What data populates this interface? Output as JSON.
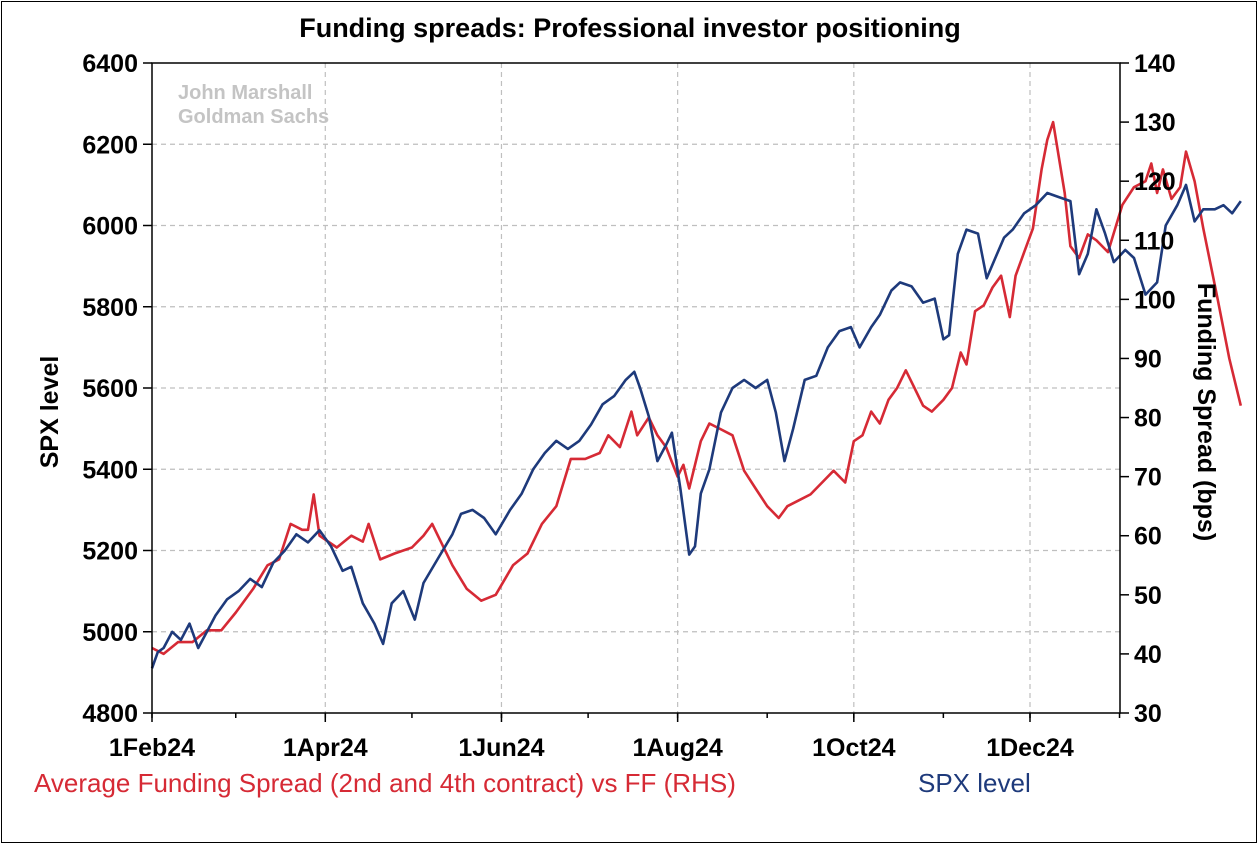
{
  "chart_data": {
    "type": "line",
    "title": "Funding spreads: Professional investor positioning",
    "watermark": [
      "John Marshall",
      "Goldman Sachs"
    ],
    "ylabel": "SPX level",
    "y2label": "Funding Spread (bps)",
    "ylim": [
      4800,
      6400
    ],
    "y2lim": [
      30,
      140
    ],
    "yticks": [
      "6400",
      "6200",
      "6000",
      "5800",
      "5600",
      "5400",
      "5200",
      "5000",
      "4800"
    ],
    "y2ticks": [
      "140",
      "130",
      "120",
      "110",
      "100",
      "90",
      "80",
      "70",
      "60",
      "50",
      "40",
      "30"
    ],
    "xticks": [
      "1Feb24",
      "1Apr24",
      "1Jun24",
      "1Aug24",
      "1Oct24",
      "1Dec24"
    ],
    "grid": true,
    "legend_position": "bottom",
    "colors": {
      "funding": "#d62a35",
      "spx": "#1e3a7b"
    },
    "series": [
      {
        "name": "Average Funding Spread (2nd and 4th contract) vs FF (RHS)",
        "axis": "right",
        "points": [
          [
            "2024-02-01",
            41
          ],
          [
            "2024-02-05",
            40
          ],
          [
            "2024-02-10",
            42
          ],
          [
            "2024-02-15",
            42
          ],
          [
            "2024-02-20",
            44
          ],
          [
            "2024-02-25",
            44
          ],
          [
            "2024-03-01",
            47
          ],
          [
            "2024-03-07",
            51
          ],
          [
            "2024-03-12",
            55
          ],
          [
            "2024-03-16",
            56
          ],
          [
            "2024-03-20",
            62
          ],
          [
            "2024-03-24",
            61
          ],
          [
            "2024-03-26",
            61
          ],
          [
            "2024-03-28",
            67
          ],
          [
            "2024-03-30",
            60
          ],
          [
            "2024-04-05",
            58
          ],
          [
            "2024-04-10",
            60
          ],
          [
            "2024-04-14",
            59
          ],
          [
            "2024-04-16",
            62
          ],
          [
            "2024-04-20",
            56
          ],
          [
            "2024-04-25",
            57
          ],
          [
            "2024-05-01",
            58
          ],
          [
            "2024-05-05",
            60
          ],
          [
            "2024-05-08",
            62
          ],
          [
            "2024-05-10",
            60
          ],
          [
            "2024-05-15",
            55
          ],
          [
            "2024-05-20",
            51
          ],
          [
            "2024-05-25",
            49
          ],
          [
            "2024-05-30",
            50
          ],
          [
            "2024-06-05",
            55
          ],
          [
            "2024-06-10",
            57
          ],
          [
            "2024-06-15",
            62
          ],
          [
            "2024-06-20",
            65
          ],
          [
            "2024-06-25",
            73
          ],
          [
            "2024-06-30",
            73
          ],
          [
            "2024-07-05",
            74
          ],
          [
            "2024-07-08",
            77
          ],
          [
            "2024-07-12",
            75
          ],
          [
            "2024-07-16",
            81
          ],
          [
            "2024-07-18",
            77
          ],
          [
            "2024-07-22",
            80
          ],
          [
            "2024-07-25",
            77
          ],
          [
            "2024-07-28",
            75
          ],
          [
            "2024-08-01",
            70
          ],
          [
            "2024-08-03",
            72
          ],
          [
            "2024-08-05",
            68
          ],
          [
            "2024-08-09",
            76
          ],
          [
            "2024-08-12",
            79
          ],
          [
            "2024-08-16",
            78
          ],
          [
            "2024-08-20",
            77
          ],
          [
            "2024-08-24",
            71
          ],
          [
            "2024-08-28",
            68
          ],
          [
            "2024-09-01",
            65
          ],
          [
            "2024-09-05",
            63
          ],
          [
            "2024-09-08",
            65
          ],
          [
            "2024-09-12",
            66
          ],
          [
            "2024-09-16",
            67
          ],
          [
            "2024-09-20",
            69
          ],
          [
            "2024-09-24",
            71
          ],
          [
            "2024-09-28",
            69
          ],
          [
            "2024-10-01",
            76
          ],
          [
            "2024-10-04",
            77
          ],
          [
            "2024-10-07",
            81
          ],
          [
            "2024-10-10",
            79
          ],
          [
            "2024-10-13",
            83
          ],
          [
            "2024-10-16",
            85
          ],
          [
            "2024-10-19",
            88
          ],
          [
            "2024-10-22",
            85
          ],
          [
            "2024-10-25",
            82
          ],
          [
            "2024-10-28",
            81
          ],
          [
            "2024-11-01",
            83
          ],
          [
            "2024-11-04",
            85
          ],
          [
            "2024-11-07",
            91
          ],
          [
            "2024-11-09",
            89
          ],
          [
            "2024-11-12",
            98
          ],
          [
            "2024-11-15",
            99
          ],
          [
            "2024-11-18",
            102
          ],
          [
            "2024-11-21",
            104
          ],
          [
            "2024-11-24",
            97
          ],
          [
            "2024-11-26",
            104
          ],
          [
            "2024-11-29",
            108
          ],
          [
            "2024-12-02",
            112
          ],
          [
            "2024-12-05",
            122
          ],
          [
            "2024-12-07",
            127
          ],
          [
            "2024-12-09",
            130
          ],
          [
            "2024-12-11",
            124
          ],
          [
            "2024-12-13",
            118
          ],
          [
            "2024-12-15",
            109
          ],
          [
            "2024-12-18",
            107
          ],
          [
            "2024-12-21",
            111
          ],
          [
            "2024-12-24",
            110
          ],
          [
            "2024-12-28",
            108
          ],
          [
            "2025-01-02",
            116
          ],
          [
            "2025-01-06",
            119
          ],
          [
            "2025-01-10",
            120
          ],
          [
            "2025-01-12",
            123
          ],
          [
            "2025-01-14",
            118
          ],
          [
            "2025-01-16",
            122
          ],
          [
            "2025-01-19",
            117
          ],
          [
            "2025-01-22",
            119
          ],
          [
            "2025-01-24",
            125
          ],
          [
            "2025-01-27",
            120
          ],
          [
            "2025-01-30",
            112
          ],
          [
            "2025-02-04",
            100
          ],
          [
            "2025-02-08",
            90
          ],
          [
            "2025-02-12",
            82
          ]
        ]
      },
      {
        "name": "SPX level",
        "axis": "left",
        "points": [
          [
            "2024-02-01",
            4910
          ],
          [
            "2024-02-03",
            4950
          ],
          [
            "2024-02-05",
            4960
          ],
          [
            "2024-02-08",
            5000
          ],
          [
            "2024-02-11",
            4980
          ],
          [
            "2024-02-14",
            5020
          ],
          [
            "2024-02-17",
            4960
          ],
          [
            "2024-02-20",
            5000
          ],
          [
            "2024-02-23",
            5040
          ],
          [
            "2024-02-27",
            5080
          ],
          [
            "2024-03-02",
            5100
          ],
          [
            "2024-03-06",
            5130
          ],
          [
            "2024-03-10",
            5110
          ],
          [
            "2024-03-14",
            5170
          ],
          [
            "2024-03-18",
            5200
          ],
          [
            "2024-03-22",
            5240
          ],
          [
            "2024-03-26",
            5220
          ],
          [
            "2024-03-30",
            5250
          ],
          [
            "2024-04-03",
            5210
          ],
          [
            "2024-04-07",
            5150
          ],
          [
            "2024-04-10",
            5160
          ],
          [
            "2024-04-14",
            5070
          ],
          [
            "2024-04-18",
            5020
          ],
          [
            "2024-04-21",
            4970
          ],
          [
            "2024-04-24",
            5070
          ],
          [
            "2024-04-28",
            5100
          ],
          [
            "2024-05-02",
            5030
          ],
          [
            "2024-05-05",
            5120
          ],
          [
            "2024-05-10",
            5180
          ],
          [
            "2024-05-15",
            5240
          ],
          [
            "2024-05-18",
            5290
          ],
          [
            "2024-05-22",
            5300
          ],
          [
            "2024-05-26",
            5280
          ],
          [
            "2024-05-30",
            5240
          ],
          [
            "2024-06-04",
            5300
          ],
          [
            "2024-06-08",
            5340
          ],
          [
            "2024-06-12",
            5400
          ],
          [
            "2024-06-16",
            5440
          ],
          [
            "2024-06-20",
            5470
          ],
          [
            "2024-06-24",
            5450
          ],
          [
            "2024-06-28",
            5470
          ],
          [
            "2024-07-02",
            5510
          ],
          [
            "2024-07-06",
            5560
          ],
          [
            "2024-07-10",
            5580
          ],
          [
            "2024-07-14",
            5620
          ],
          [
            "2024-07-17",
            5640
          ],
          [
            "2024-07-19",
            5600
          ],
          [
            "2024-07-22",
            5530
          ],
          [
            "2024-07-25",
            5420
          ],
          [
            "2024-07-28",
            5460
          ],
          [
            "2024-07-30",
            5490
          ],
          [
            "2024-08-02",
            5350
          ],
          [
            "2024-08-05",
            5190
          ],
          [
            "2024-08-07",
            5210
          ],
          [
            "2024-08-09",
            5340
          ],
          [
            "2024-08-12",
            5400
          ],
          [
            "2024-08-16",
            5540
          ],
          [
            "2024-08-20",
            5600
          ],
          [
            "2024-08-24",
            5620
          ],
          [
            "2024-08-28",
            5600
          ],
          [
            "2024-09-01",
            5620
          ],
          [
            "2024-09-04",
            5540
          ],
          [
            "2024-09-07",
            5420
          ],
          [
            "2024-09-10",
            5500
          ],
          [
            "2024-09-14",
            5620
          ],
          [
            "2024-09-18",
            5630
          ],
          [
            "2024-09-22",
            5700
          ],
          [
            "2024-09-26",
            5740
          ],
          [
            "2024-09-30",
            5750
          ],
          [
            "2024-10-03",
            5700
          ],
          [
            "2024-10-07",
            5750
          ],
          [
            "2024-10-10",
            5780
          ],
          [
            "2024-10-14",
            5840
          ],
          [
            "2024-10-17",
            5860
          ],
          [
            "2024-10-21",
            5850
          ],
          [
            "2024-10-25",
            5810
          ],
          [
            "2024-10-29",
            5820
          ],
          [
            "2024-11-01",
            5720
          ],
          [
            "2024-11-03",
            5730
          ],
          [
            "2024-11-06",
            5930
          ],
          [
            "2024-11-09",
            5990
          ],
          [
            "2024-11-13",
            5980
          ],
          [
            "2024-11-16",
            5870
          ],
          [
            "2024-11-19",
            5920
          ],
          [
            "2024-11-22",
            5970
          ],
          [
            "2024-11-25",
            5990
          ],
          [
            "2024-11-29",
            6030
          ],
          [
            "2024-12-03",
            6050
          ],
          [
            "2024-12-07",
            6080
          ],
          [
            "2024-12-11",
            6070
          ],
          [
            "2024-12-15",
            6060
          ],
          [
            "2024-12-18",
            5880
          ],
          [
            "2024-12-21",
            5930
          ],
          [
            "2024-12-24",
            6040
          ],
          [
            "2024-12-27",
            5980
          ],
          [
            "2024-12-30",
            5910
          ],
          [
            "2025-01-03",
            5940
          ],
          [
            "2025-01-06",
            5920
          ],
          [
            "2025-01-10",
            5830
          ],
          [
            "2025-01-14",
            5860
          ],
          [
            "2025-01-17",
            6000
          ],
          [
            "2025-01-21",
            6050
          ],
          [
            "2025-01-24",
            6100
          ],
          [
            "2025-01-27",
            6010
          ],
          [
            "2025-01-30",
            6040
          ],
          [
            "2025-02-03",
            6040
          ],
          [
            "2025-02-06",
            6050
          ],
          [
            "2025-02-09",
            6030
          ],
          [
            "2025-02-12",
            6060
          ]
        ]
      }
    ]
  }
}
